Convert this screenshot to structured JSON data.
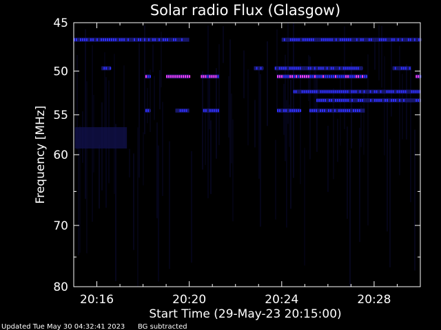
{
  "chart_data": {
    "type": "heatmap",
    "title": "Solar radio Flux (Glasgow)",
    "xlabel": "Start Time (29-May-23 20:15:00)",
    "ylabel": "Frequency [MHz]",
    "x_ticks": [
      "20:16",
      "20:20",
      "20:24",
      "20:28"
    ],
    "x_tick_minutes": [
      16,
      20,
      24,
      28
    ],
    "xlim_minutes": [
      15.0,
      30.0
    ],
    "y_ticks": [
      45,
      50,
      55,
      60,
      70,
      80
    ],
    "ylim": [
      45,
      80
    ],
    "y_scale": "log",
    "colors": {
      "background": "#000000",
      "axis": "#ffffff",
      "low": "#1a1a6e",
      "mid": "#3030ff",
      "high": "#ff40ff"
    },
    "emission_bands": [
      {
        "freq": 50.6,
        "segments": [
          [
            18.1,
            18.3
          ],
          [
            19.0,
            20.0
          ],
          [
            20.5,
            21.3
          ],
          [
            23.8,
            27.7
          ],
          [
            29.8,
            30.0
          ]
        ],
        "intensity": "high"
      },
      {
        "freq": 54.5,
        "segments": [
          [
            18.1,
            18.3
          ],
          [
            19.4,
            20.0
          ],
          [
            20.6,
            21.3
          ],
          [
            23.8,
            24.8
          ],
          [
            25.2,
            27.6
          ]
        ],
        "intensity": "mid"
      },
      {
        "freq": 49.7,
        "segments": [
          [
            16.2,
            16.6
          ],
          [
            22.8,
            23.2
          ],
          [
            23.7,
            27.5
          ],
          [
            28.8,
            29.6
          ]
        ],
        "intensity": "mid"
      },
      {
        "freq": 52.3,
        "segments": [
          [
            24.5,
            30.0
          ]
        ],
        "intensity": "mid"
      },
      {
        "freq": 53.3,
        "segments": [
          [
            25.5,
            30.0
          ]
        ],
        "intensity": "low"
      },
      {
        "freq": 46.7,
        "segments": [
          [
            15.0,
            20.0
          ],
          [
            24.0,
            30.0
          ]
        ],
        "intensity": "low"
      }
    ]
  },
  "footer": {
    "updated": "Updated Tue May 30 04:32:41 2023",
    "note": "BG subtracted"
  }
}
